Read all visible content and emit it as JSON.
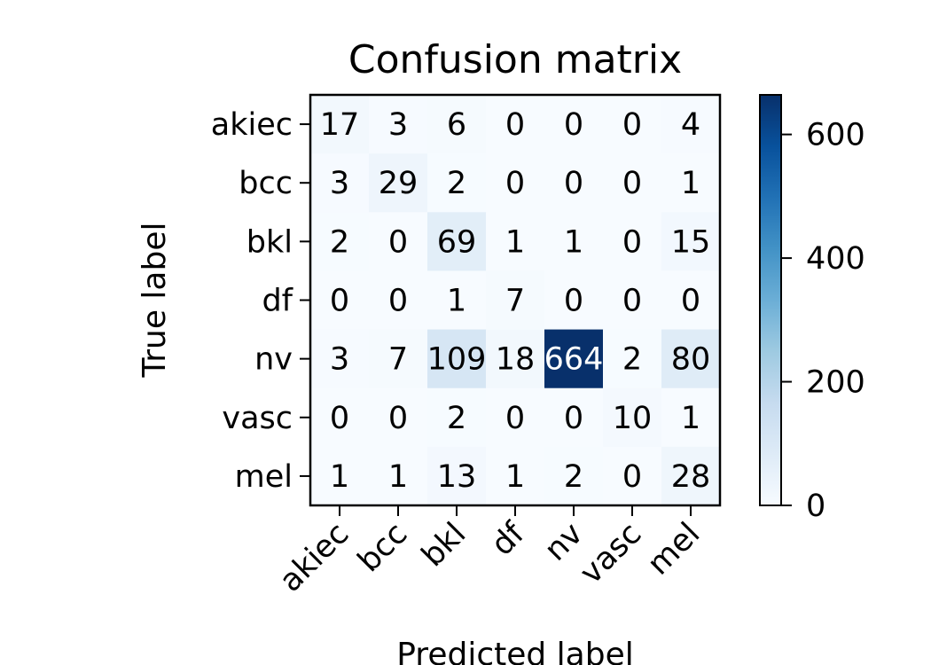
{
  "chart_data": {
    "type": "heatmap",
    "title": "Confusion matrix",
    "xlabel": "Predicted label",
    "ylabel": "True label",
    "x_categories": [
      "akiec",
      "bcc",
      "bkl",
      "df",
      "nv",
      "vasc",
      "mel"
    ],
    "y_categories": [
      "akiec",
      "bcc",
      "bkl",
      "df",
      "nv",
      "vasc",
      "mel"
    ],
    "matrix": [
      [
        17,
        3,
        6,
        0,
        0,
        0,
        4
      ],
      [
        3,
        29,
        2,
        0,
        0,
        0,
        1
      ],
      [
        2,
        0,
        69,
        1,
        1,
        0,
        15
      ],
      [
        0,
        0,
        1,
        7,
        0,
        0,
        0
      ],
      [
        3,
        7,
        109,
        18,
        664,
        2,
        80
      ],
      [
        0,
        0,
        2,
        0,
        0,
        10,
        1
      ],
      [
        1,
        1,
        13,
        1,
        2,
        0,
        28
      ]
    ],
    "colorbar": {
      "range": [
        0,
        664
      ],
      "ticks": [
        0,
        200,
        400,
        600
      ],
      "colormap": "Blues",
      "colors": [
        "#f7fbff",
        "#deebf7",
        "#c6dbef",
        "#9ecae1",
        "#6baed6",
        "#4292c6",
        "#2171b5",
        "#08519c",
        "#08306b"
      ]
    },
    "grid": false
  }
}
